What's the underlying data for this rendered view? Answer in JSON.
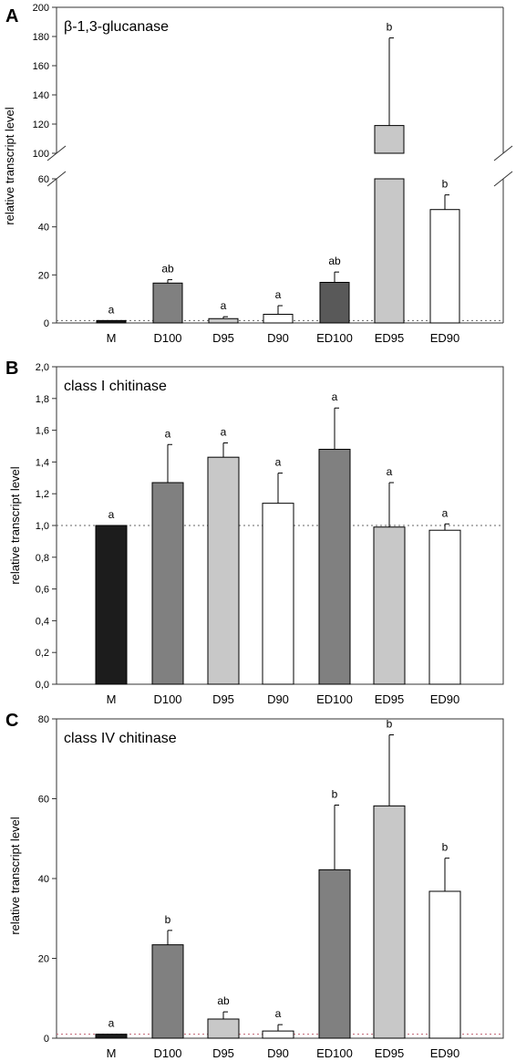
{
  "chart_data": [
    {
      "panel": "A",
      "type": "bar",
      "title": "β-1,3-glucanase",
      "ylabel": "relative transcript level",
      "categories": [
        "M",
        "D100",
        "D95",
        "D90",
        "ED100",
        "ED95",
        "ED90"
      ],
      "values": [
        1.0,
        16.6,
        1.8,
        3.6,
        16.9,
        119,
        47.2
      ],
      "errors": [
        0,
        1.4,
        0.8,
        3.6,
        4.3,
        60,
        6.1
      ],
      "letters": [
        "a",
        "ab",
        "a",
        "a",
        "ab",
        "b",
        "b"
      ],
      "colors": [
        "#1c1c1c",
        "#808080",
        "#c8c8c8",
        "#ffffff",
        "#595959",
        "#c8c8c8",
        "#ffffff"
      ],
      "reference_line": 1,
      "broken_axis": {
        "lower": [
          0,
          60
        ],
        "upper": [
          100,
          200
        ]
      },
      "yticks_lower": [
        "0",
        "20",
        "40",
        "60"
      ],
      "yticks_upper": [
        "100",
        "120",
        "140",
        "160",
        "180",
        "200"
      ],
      "grid": false,
      "legend": false
    },
    {
      "panel": "B",
      "type": "bar",
      "title": "class I chitinase",
      "ylabel": "relative transcript level",
      "categories": [
        "M",
        "D100",
        "D95",
        "D90",
        "ED100",
        "ED95",
        "ED90"
      ],
      "values": [
        1.0,
        1.27,
        1.43,
        1.14,
        1.48,
        0.99,
        0.97
      ],
      "errors": [
        0,
        0.24,
        0.09,
        0.19,
        0.26,
        0.28,
        0.04
      ],
      "letters": [
        "a",
        "a",
        "a",
        "a",
        "a",
        "a",
        "a"
      ],
      "colors": [
        "#1c1c1c",
        "#808080",
        "#c8c8c8",
        "#ffffff",
        "#808080",
        "#c8c8c8",
        "#ffffff"
      ],
      "reference_line": 1,
      "ylim": [
        0,
        2
      ],
      "yticks": [
        "0,0",
        "0,2",
        "0,4",
        "0,6",
        "0,8",
        "1,0",
        "1,2",
        "1,4",
        "1,6",
        "1,8",
        "2,0"
      ],
      "grid": false,
      "legend": false
    },
    {
      "panel": "C",
      "type": "bar",
      "title": "class IV chitinase",
      "ylabel": "relative transcript level",
      "categories": [
        "M",
        "D100",
        "D95",
        "D90",
        "ED100",
        "ED95",
        "ED90"
      ],
      "values": [
        1.0,
        23.4,
        4.8,
        1.8,
        42.2,
        58.2,
        36.8
      ],
      "errors": [
        0,
        3.6,
        1.8,
        1.6,
        16.2,
        17.8,
        8.3
      ],
      "letters": [
        "a",
        "b",
        "ab",
        "a",
        "b",
        "b",
        "b"
      ],
      "colors": [
        "#1c1c1c",
        "#808080",
        "#c8c8c8",
        "#ffffff",
        "#808080",
        "#c8c8c8",
        "#ffffff"
      ],
      "reference_line": 1,
      "ylim": [
        0,
        80
      ],
      "yticks": [
        "0",
        "20",
        "40",
        "60",
        "80"
      ],
      "grid": false,
      "legend": false
    }
  ]
}
